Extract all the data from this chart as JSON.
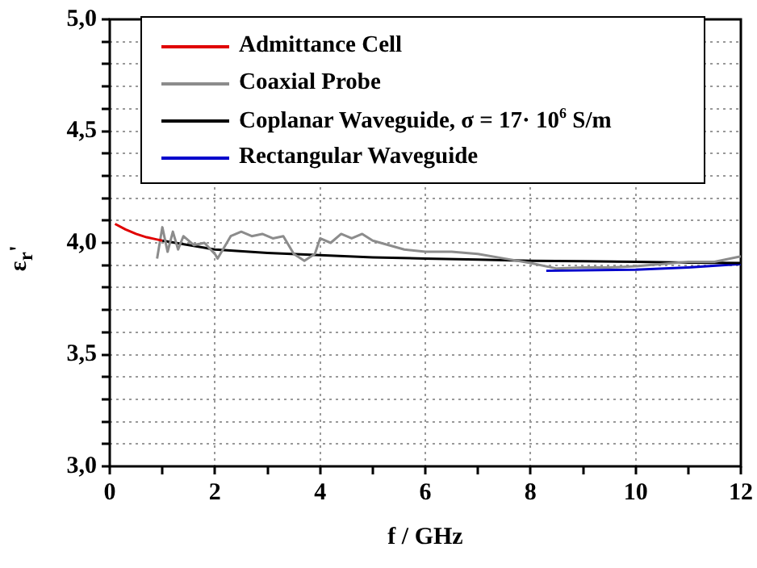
{
  "chart_data": {
    "type": "line",
    "xlabel": "f / GHz",
    "ylabel": "ε$_{r}$'",
    "xlim": [
      0,
      12
    ],
    "xticks": [
      0,
      {
        "value": 1,
        "label": null
      },
      2,
      {
        "value": 3,
        "label": null
      },
      4,
      {
        "value": 5,
        "label": null
      },
      6,
      {
        "value": 7,
        "label": null
      },
      8,
      {
        "value": 9,
        "label": null
      },
      10,
      {
        "value": 11,
        "label": null
      },
      12
    ],
    "ylim": [
      3,
      5
    ],
    "yticks": [
      {
        "value": 3,
        "label": "3,0"
      },
      {
        "value": 3.1,
        "label": null
      },
      {
        "value": 3.2,
        "label": null
      },
      {
        "value": 3.3,
        "label": null
      },
      {
        "value": 3.4,
        "label": null
      },
      {
        "value": 3.5,
        "label": "3,5"
      },
      {
        "value": 3.6,
        "label": null
      },
      {
        "value": 3.7,
        "label": null
      },
      {
        "value": 3.8,
        "label": null
      },
      {
        "value": 3.9,
        "label": null
      },
      {
        "value": 4,
        "label": "4,0"
      },
      {
        "value": 4.1,
        "label": null
      },
      {
        "value": 4.2,
        "label": null
      },
      {
        "value": 4.3,
        "label": null
      },
      {
        "value": 4.4,
        "label": null
      },
      {
        "value": 4.5,
        "label": "4,5"
      },
      {
        "value": 4.6,
        "label": null
      },
      {
        "value": 4.7,
        "label": null
      },
      {
        "value": 4.8,
        "label": null
      },
      {
        "value": 4.9,
        "label": null
      },
      {
        "value": 5,
        "label": "5,0"
      }
    ],
    "grid": true,
    "legend": "top",
    "marker": "none",
    "line_style": "solid",
    "series": [
      {
        "name": "Admittance Cell",
        "color": "#e00000",
        "x": [
          0.1,
          0.3,
          0.5,
          0.7,
          0.9,
          1.0
        ],
        "values": [
          4.085,
          4.06,
          4.04,
          4.025,
          4.015,
          4.01
        ]
      },
      {
        "name": "Coaxial Probe",
        "color": "#8c8c8c",
        "x": [
          0.9,
          1.0,
          1.1,
          1.2,
          1.3,
          1.4,
          1.6,
          1.8,
          2.0,
          2.05,
          2.3,
          2.5,
          2.7,
          2.9,
          3.1,
          3.3,
          3.5,
          3.7,
          3.9,
          4.0,
          4.2,
          4.4,
          4.6,
          4.8,
          5.0,
          5.3,
          5.6,
          6.0,
          6.5,
          7.0,
          7.5,
          8.0,
          8.5,
          9.0,
          9.5,
          10.0,
          10.5,
          11.0,
          11.5,
          12.0
        ],
        "values": [
          3.93,
          4.07,
          3.96,
          4.05,
          3.97,
          4.03,
          3.99,
          4.0,
          3.95,
          3.93,
          4.03,
          4.05,
          4.03,
          4.04,
          4.02,
          4.03,
          3.95,
          3.92,
          3.95,
          4.02,
          4.0,
          4.04,
          4.02,
          4.04,
          4.01,
          3.99,
          3.97,
          3.96,
          3.96,
          3.95,
          3.93,
          3.91,
          3.885,
          3.89,
          3.89,
          3.895,
          3.905,
          3.915,
          3.915,
          3.94
        ]
      },
      {
        "name": "Coplanar Waveguide, σ = 17· 10$^{6}$ S/m",
        "color": "#000000",
        "x": [
          1,
          2,
          3,
          4,
          5,
          6,
          7,
          8,
          9,
          10,
          11,
          12
        ],
        "values": [
          4.01,
          3.97,
          3.955,
          3.945,
          3.935,
          3.93,
          3.925,
          3.92,
          3.918,
          3.915,
          3.912,
          3.91
        ]
      },
      {
        "name": "Rectangular Waveguide",
        "color": "#0000cc",
        "x": [
          8.3,
          9,
          10,
          11,
          12
        ],
        "values": [
          3.875,
          3.877,
          3.88,
          3.89,
          3.905
        ]
      }
    ]
  }
}
